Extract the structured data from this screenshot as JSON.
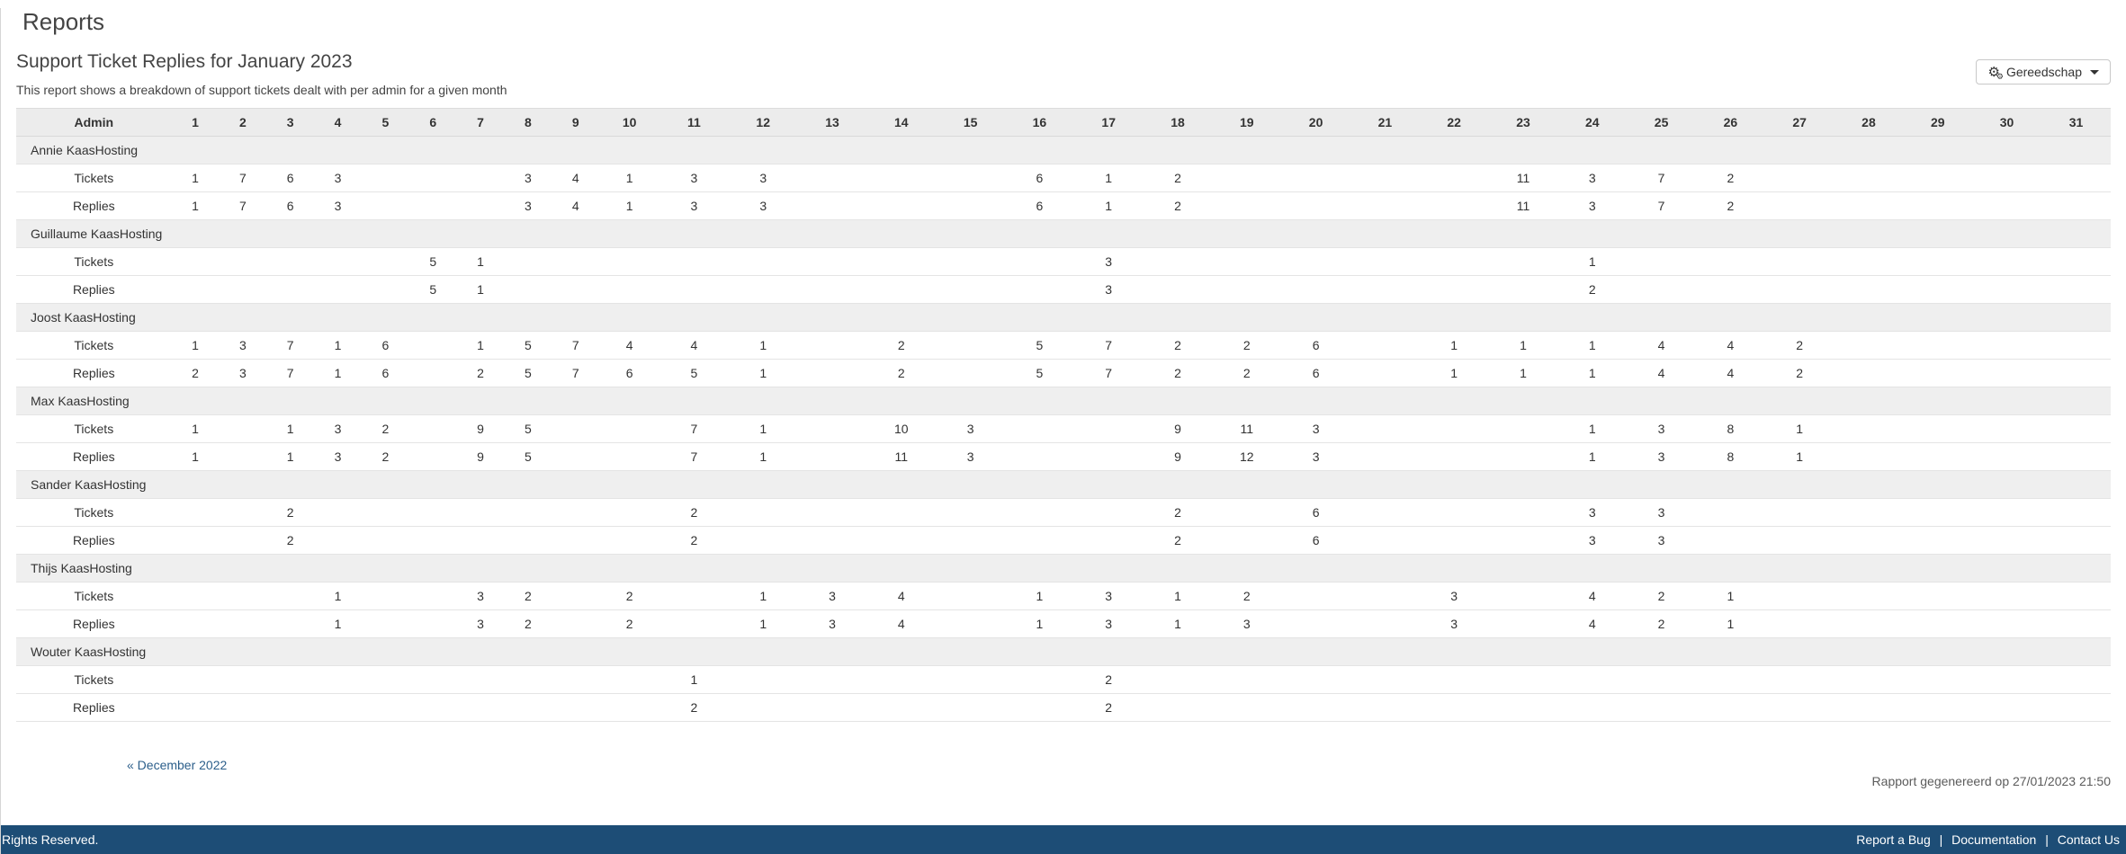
{
  "page": {
    "title": "Reports",
    "report_title": "Support Ticket Replies for January 2023",
    "report_description": "This report shows a breakdown of support tickets dealt with per admin for a given month",
    "tools_button_label": "Gereedschap",
    "prev_month_link": "« December 2022",
    "generated_text": "Rapport gegenereerd op 27/01/2023 21:50"
  },
  "footer": {
    "left_text": "Rights Reserved.",
    "links": [
      "Report a Bug",
      "Documentation",
      "Contact Us"
    ],
    "separator": "|"
  },
  "colors": {
    "footer_bar": "#1d4d76",
    "link": "#2b5e8a",
    "table_header_bg": "#ececec",
    "group_row_bg": "#efefef"
  },
  "table": {
    "admin_header": "Admin",
    "day_headers": [
      "1",
      "2",
      "3",
      "4",
      "5",
      "6",
      "7",
      "8",
      "9",
      "10",
      "11",
      "12",
      "13",
      "14",
      "15",
      "16",
      "17",
      "18",
      "19",
      "20",
      "21",
      "22",
      "23",
      "24",
      "25",
      "26",
      "27",
      "28",
      "29",
      "30",
      "31"
    ],
    "row_labels": {
      "tickets": "Tickets",
      "replies": "Replies"
    },
    "groups": [
      {
        "admin": "Annie KaasHosting",
        "tickets": {
          "1": 1,
          "2": 7,
          "3": 6,
          "4": 3,
          "8": 3,
          "9": 4,
          "10": 1,
          "11": 3,
          "12": 3,
          "16": 6,
          "17": 1,
          "18": 2,
          "23": 11,
          "24": 3,
          "25": 7,
          "26": 2
        },
        "replies": {
          "1": 1,
          "2": 7,
          "3": 6,
          "4": 3,
          "8": 3,
          "9": 4,
          "10": 1,
          "11": 3,
          "12": 3,
          "16": 6,
          "17": 1,
          "18": 2,
          "23": 11,
          "24": 3,
          "25": 7,
          "26": 2
        }
      },
      {
        "admin": "Guillaume KaasHosting",
        "tickets": {
          "6": 5,
          "7": 1,
          "17": 3,
          "24": 1
        },
        "replies": {
          "6": 5,
          "7": 1,
          "17": 3,
          "24": 2
        }
      },
      {
        "admin": "Joost KaasHosting",
        "tickets": {
          "1": 1,
          "2": 3,
          "3": 7,
          "4": 1,
          "5": 6,
          "7": 1,
          "8": 5,
          "9": 7,
          "10": 4,
          "11": 4,
          "12": 1,
          "14": 2,
          "16": 5,
          "17": 7,
          "18": 2,
          "19": 2,
          "20": 6,
          "22": 1,
          "23": 1,
          "24": 1,
          "25": 4,
          "26": 4,
          "27": 2
        },
        "replies": {
          "1": 2,
          "2": 3,
          "3": 7,
          "4": 1,
          "5": 6,
          "7": 2,
          "8": 5,
          "9": 7,
          "10": 6,
          "11": 5,
          "12": 1,
          "14": 2,
          "16": 5,
          "17": 7,
          "18": 2,
          "19": 2,
          "20": 6,
          "22": 1,
          "23": 1,
          "24": 1,
          "25": 4,
          "26": 4,
          "27": 2
        }
      },
      {
        "admin": "Max KaasHosting",
        "tickets": {
          "1": 1,
          "3": 1,
          "4": 3,
          "5": 2,
          "7": 9,
          "8": 5,
          "11": 7,
          "12": 1,
          "14": 10,
          "15": 3,
          "18": 9,
          "19": 11,
          "20": 3,
          "24": 1,
          "25": 3,
          "26": 8,
          "27": 1
        },
        "replies": {
          "1": 1,
          "3": 1,
          "4": 3,
          "5": 2,
          "7": 9,
          "8": 5,
          "11": 7,
          "12": 1,
          "14": 11,
          "15": 3,
          "18": 9,
          "19": 12,
          "20": 3,
          "24": 1,
          "25": 3,
          "26": 8,
          "27": 1
        }
      },
      {
        "admin": "Sander KaasHosting",
        "tickets": {
          "3": 2,
          "11": 2,
          "18": 2,
          "20": 6,
          "24": 3,
          "25": 3
        },
        "replies": {
          "3": 2,
          "11": 2,
          "18": 2,
          "20": 6,
          "24": 3,
          "25": 3
        }
      },
      {
        "admin": "Thijs KaasHosting",
        "tickets": {
          "4": 1,
          "7": 3,
          "8": 2,
          "10": 2,
          "12": 1,
          "13": 3,
          "14": 4,
          "16": 1,
          "17": 3,
          "18": 1,
          "19": 2,
          "22": 3,
          "24": 4,
          "25": 2,
          "26": 1
        },
        "replies": {
          "4": 1,
          "7": 3,
          "8": 2,
          "10": 2,
          "12": 1,
          "13": 3,
          "14": 4,
          "16": 1,
          "17": 3,
          "18": 1,
          "19": 3,
          "22": 3,
          "24": 4,
          "25": 2,
          "26": 1
        }
      },
      {
        "admin": "Wouter KaasHosting",
        "tickets": {
          "11": 1,
          "17": 2
        },
        "replies": {
          "11": 2,
          "17": 2
        }
      }
    ]
  }
}
